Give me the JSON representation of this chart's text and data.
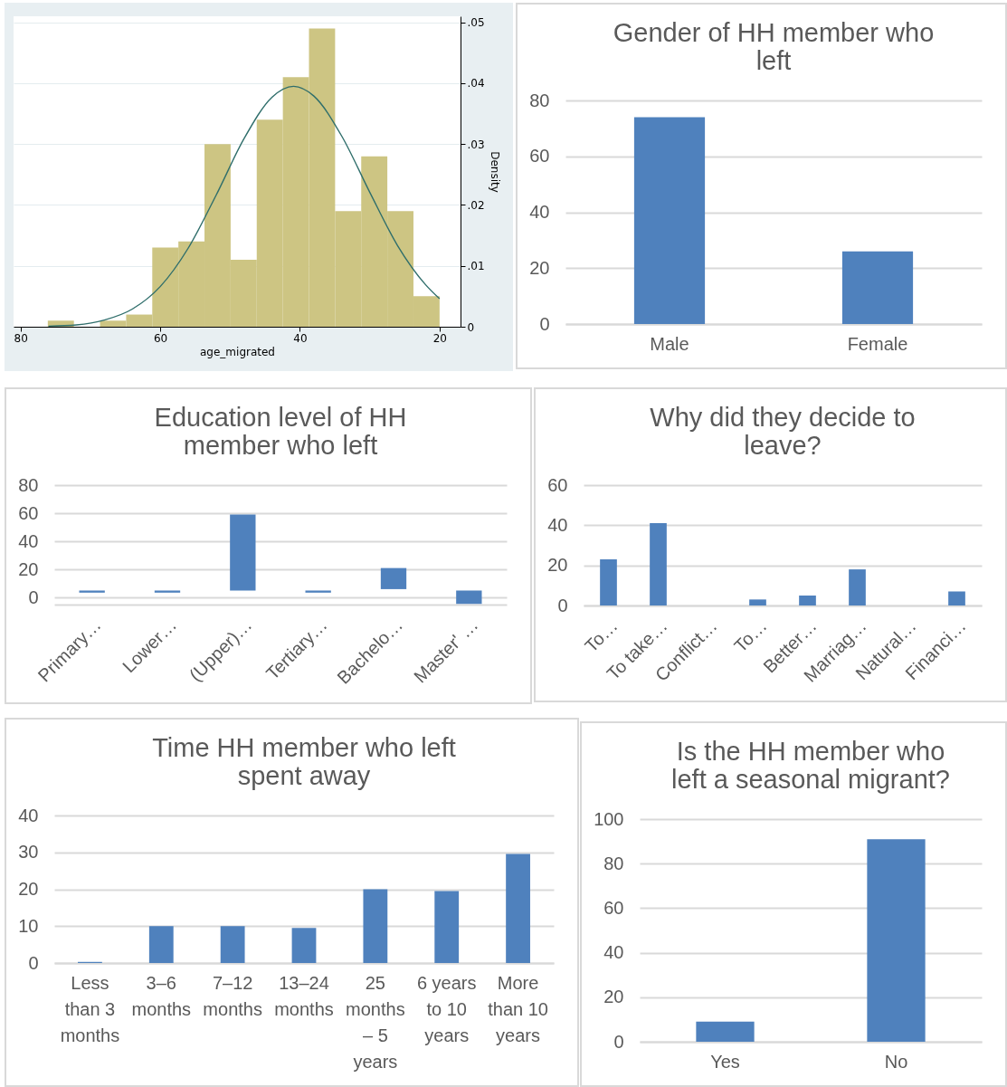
{
  "chart_data": [
    {
      "type": "histogram",
      "xlabel": "age_migrated",
      "ylabel": "Density",
      "bins": [
        20,
        23.74,
        27.48,
        31.22,
        34.96,
        38.7,
        42.44,
        46.18,
        49.92,
        53.66,
        57.4,
        61.14,
        64.88,
        68.62,
        72.36,
        76.1
      ],
      "xlim": [
        81,
        17
      ],
      "ylim": [
        0,
        0.051
      ],
      "xticks": [
        80,
        60,
        40,
        20
      ],
      "yticks": [
        {
          "value": 0,
          "label": "0"
        },
        {
          "value": 0.01,
          "label": ".01"
        },
        {
          "value": 0.02,
          "label": ".02"
        },
        {
          "value": 0.03,
          "label": ".03"
        },
        {
          "value": 0.04,
          "label": ".04"
        },
        {
          "value": 0.05,
          "label": ".05"
        }
      ],
      "grid": "y",
      "series": [
        {
          "type": "histogram",
          "color": "#cdc583",
          "values": [
            0.005,
            0.019,
            0.028,
            0.019,
            0.049,
            0.041,
            0.034,
            0.011,
            0.03,
            0.014,
            0.013,
            0.002,
            0.001,
            0,
            0.001
          ]
        },
        {
          "type": "line",
          "color": "#2f6e6b",
          "x": [
            20,
            22,
            26,
            30,
            34,
            38,
            40.9,
            44,
            48,
            52,
            56,
            60,
            64,
            68,
            72,
            76
          ],
          "values": [
            0.0046,
            0.0069,
            0.0133,
            0.0221,
            0.0313,
            0.0379,
            0.0395,
            0.0377,
            0.0309,
            0.0216,
            0.0129,
            0.0066,
            0.0029,
            0.0011,
            0.0003,
            0.0001
          ]
        }
      ]
    },
    {
      "type": "bar",
      "title": "Gender of HH member who left",
      "categories": [
        "Male",
        "Female"
      ],
      "values": [
        74,
        26
      ],
      "color": "#4f81bd",
      "ylim": [
        0,
        80
      ],
      "yticks": [
        0,
        20,
        40,
        60,
        80
      ],
      "grid": "y"
    },
    {
      "type": "bar",
      "title": "Education level of HH member who left",
      "categories": [
        "Primary…",
        "Lower…",
        "(Upper)…",
        "Tertiary…",
        "Bachelo…",
        "Master' …"
      ],
      "base": [
        3.5,
        3.5,
        5,
        3.5,
        6,
        -4.5
      ],
      "values": [
        1.5,
        1.5,
        54,
        1.5,
        15,
        9.5
      ],
      "color": "#4f81bd",
      "ylim": [
        -5,
        80
      ],
      "yticks": [
        0,
        20,
        40,
        60,
        80
      ],
      "grid": "y"
    },
    {
      "type": "bar",
      "title": "Why did they decide to leave?",
      "categories": [
        "To…",
        "To take…",
        "Conflict…",
        "To…",
        "Better…",
        "Marriag…",
        "Natural…",
        "Financi…"
      ],
      "values": [
        23,
        41,
        0,
        3,
        5,
        18,
        0,
        7
      ],
      "color": "#4f81bd",
      "ylim": [
        0,
        60
      ],
      "yticks": [
        0,
        20,
        40,
        60
      ],
      "grid": "y"
    },
    {
      "type": "bar",
      "title": "Time HH member who left spent away",
      "categories": [
        "Less than 3 months",
        "3–6 months",
        "7–12 months",
        "13–24 months",
        "25 months – 5 years",
        "6 years to 10 years",
        "More than 10 years"
      ],
      "values": [
        0.3,
        10,
        10,
        9.5,
        20,
        19.5,
        29.6
      ],
      "color": "#4f81bd",
      "ylim": [
        0,
        40
      ],
      "yticks": [
        0,
        10,
        20,
        30,
        40
      ],
      "grid": "y"
    },
    {
      "type": "bar",
      "title": "Is the HH member who left a seasonal migrant?",
      "categories": [
        "Yes",
        "No"
      ],
      "values": [
        9,
        91
      ],
      "color": "#4f81bd",
      "ylim": [
        0,
        100
      ],
      "yticks": [
        0,
        20,
        40,
        60,
        80,
        100
      ],
      "grid": "y"
    }
  ]
}
